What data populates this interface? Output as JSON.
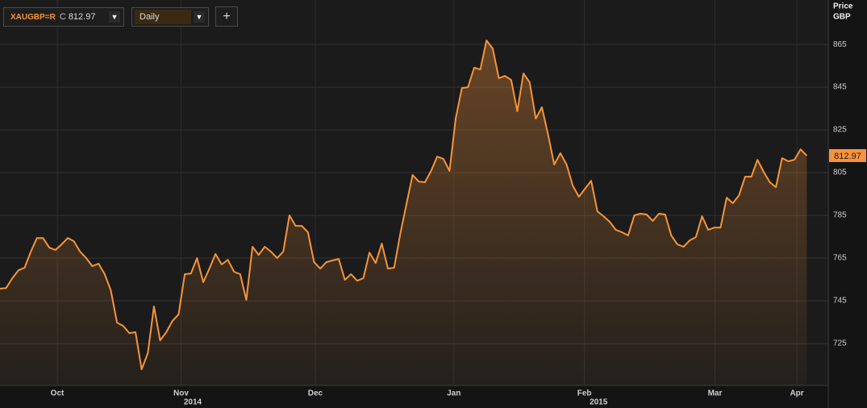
{
  "toolbar": {
    "symbol": "XAUGBP=R",
    "quote_prefix": "C",
    "interval": "Daily",
    "add_button": "+"
  },
  "chart_data": {
    "type": "area",
    "y_axis_label": "Price",
    "y_axis_unit": "GBP",
    "x": [
      0,
      1,
      2,
      3,
      4,
      5,
      6,
      7,
      8,
      9,
      10,
      11,
      12,
      13,
      14,
      15,
      16,
      17,
      18,
      19,
      20,
      21,
      22,
      23,
      24,
      25,
      26,
      27,
      28,
      29,
      30,
      31,
      32,
      33,
      34,
      35,
      36,
      37,
      38,
      39,
      40,
      41,
      42,
      43,
      44,
      45,
      46,
      47,
      48,
      49,
      50,
      51,
      52,
      53,
      54,
      55,
      56,
      57,
      58,
      59,
      60,
      61,
      62,
      63,
      64,
      65,
      66,
      67,
      68,
      69,
      70,
      71,
      72,
      73,
      74,
      75,
      76,
      77,
      78,
      79,
      80,
      81,
      82,
      83,
      84,
      85,
      86,
      87,
      88,
      89,
      90,
      91,
      92,
      93,
      94,
      95,
      96,
      97,
      98,
      99,
      100,
      101,
      102,
      103,
      104,
      105,
      106,
      107,
      108,
      109,
      110,
      111,
      112,
      113,
      114,
      115,
      116,
      117,
      118,
      119,
      120,
      121,
      122,
      123,
      124,
      125,
      126,
      127,
      128,
      129,
      130,
      131
    ],
    "series": [
      {
        "name": "XAUGBP=R",
        "color": "#f7943a",
        "values": [
          750.7,
          751.0,
          755.6,
          759.3,
          760.5,
          768.0,
          774.4,
          774.4,
          769.9,
          768.8,
          771.4,
          774.4,
          772.9,
          768.0,
          765.0,
          761.2,
          762.4,
          757.5,
          749.9,
          734.8,
          733.3,
          729.9,
          730.3,
          712.9,
          720.5,
          742.4,
          726.5,
          730.3,
          735.6,
          738.6,
          757.5,
          757.8,
          765.0,
          753.7,
          760.1,
          766.9,
          762.0,
          764.2,
          758.6,
          757.5,
          745.4,
          770.3,
          766.5,
          770.3,
          768.0,
          765.0,
          768.0,
          785.0,
          780.1,
          780.1,
          777.1,
          763.1,
          760.1,
          763.1,
          763.9,
          764.6,
          754.8,
          757.5,
          754.4,
          755.6,
          767.6,
          762.7,
          771.8,
          760.1,
          760.5,
          776.3,
          790.3,
          803.9,
          800.8,
          800.5,
          805.8,
          812.5,
          811.4,
          805.8,
          830.3,
          844.6,
          845.0,
          854.1,
          853.3,
          866.9,
          863.1,
          849.2,
          850.3,
          848.4,
          833.7,
          851.4,
          847.3,
          830.3,
          835.6,
          822.7,
          808.8,
          814.1,
          808.8,
          799.0,
          793.7,
          797.5,
          801.2,
          786.9,
          784.6,
          782.0,
          778.2,
          777.1,
          775.6,
          785.0,
          785.8,
          785.4,
          782.4,
          785.8,
          785.4,
          775.6,
          771.4,
          770.3,
          773.3,
          774.8,
          784.6,
          778.2,
          779.3,
          779.3,
          793.3,
          790.7,
          794.4,
          803.1,
          803.1,
          811.0,
          805.4,
          800.5,
          798.2,
          811.8,
          810.3,
          811.0,
          815.9,
          812.97
        ]
      }
    ],
    "xlim": [
      0,
      134.5
    ],
    "xticks": [
      {
        "value": 9.3,
        "label": "Oct"
      },
      {
        "value": 29.4,
        "label": "Nov"
      },
      {
        "value": 51.2,
        "label": "Dec"
      },
      {
        "value": 73.7,
        "label": "Jan"
      },
      {
        "value": 94.9,
        "label": "Feb"
      },
      {
        "value": 116.1,
        "label": "Mar"
      },
      {
        "value": 129.4,
        "label": "Apr"
      }
    ],
    "year_labels": [
      {
        "value": 31.3,
        "label": "2014"
      },
      {
        "value": 97.2,
        "label": "2015"
      }
    ],
    "ylim": [
      705.4,
      885.8
    ],
    "yticks": [
      725,
      745,
      765,
      785,
      805,
      825,
      845,
      865
    ],
    "grid": true
  }
}
